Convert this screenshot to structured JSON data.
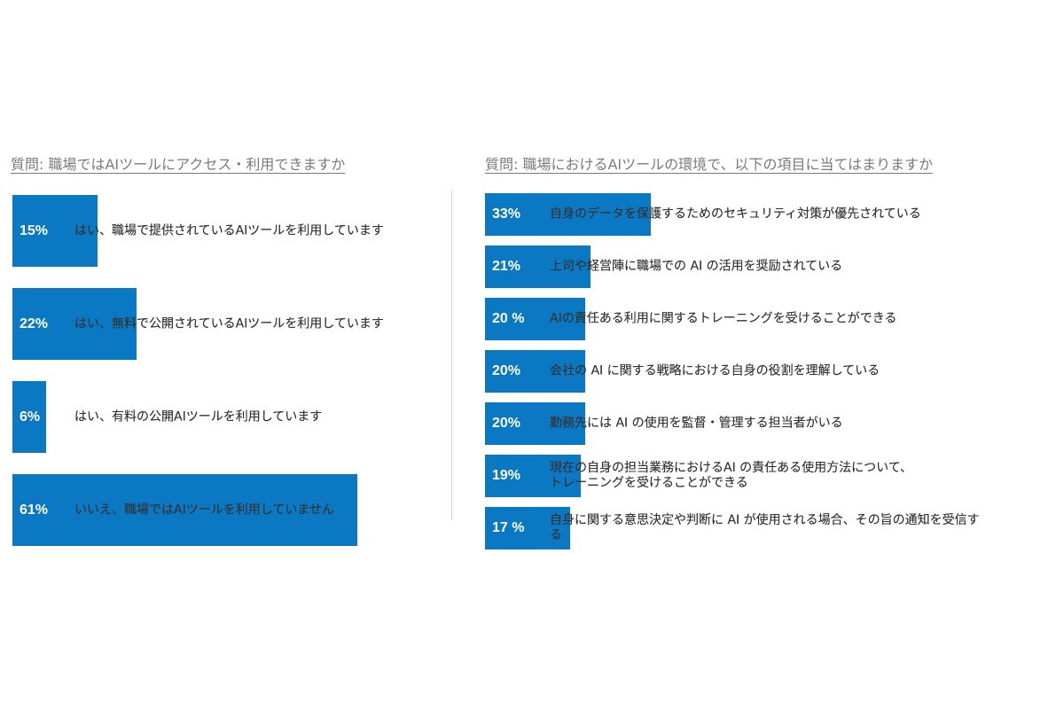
{
  "chart_data": [
    {
      "type": "bar",
      "orientation": "horizontal",
      "title": "質問: 職場ではAIツールにアクセス・利用できますか",
      "categories": [
        "はい、職場で提供されているAIツールを利用しています",
        "はい、無料で公開されているAIツールを利用しています",
        "はい、有料の公開AIツールを利用しています",
        "いいえ、職場ではAIツールを利用していません"
      ],
      "values": [
        15,
        22,
        6,
        61
      ],
      "value_labels": [
        "15%",
        "22%",
        "6%",
        "61%"
      ],
      "xlim": [
        0,
        100
      ],
      "unit": "%",
      "bar_color": "#0a78c2"
    },
    {
      "type": "bar",
      "orientation": "horizontal",
      "title": "質問: 職場におけるAIツールの環境で、以下の項目に当てはまりますか",
      "categories": [
        "自身のデータを保護するためのセキュリティ対策が優先されている",
        "上司や経営陣に職場での AI の活用を奨励されている",
        "AIの責任ある利用に関するトレーニングを受けることができる",
        "会社の AI に関する戦略における自身の役割を理解している",
        "勤務先には AI の使用を監督・管理する担当者がいる",
        "現在の自身の担当業務におけるAI の責任ある使用方法について、\nトレーニングを受けることができる",
        "自身に関する意思決定や判断に AI が使用される場合、その旨の通知を受信する"
      ],
      "values": [
        33,
        21,
        20,
        20,
        20,
        19,
        17
      ],
      "value_labels": [
        "33%",
        "21%",
        "20 %",
        "20%",
        "20%",
        "19%",
        "17 %"
      ],
      "xlim": [
        0,
        100
      ],
      "unit": "%",
      "bar_color": "#0a78c2"
    }
  ]
}
